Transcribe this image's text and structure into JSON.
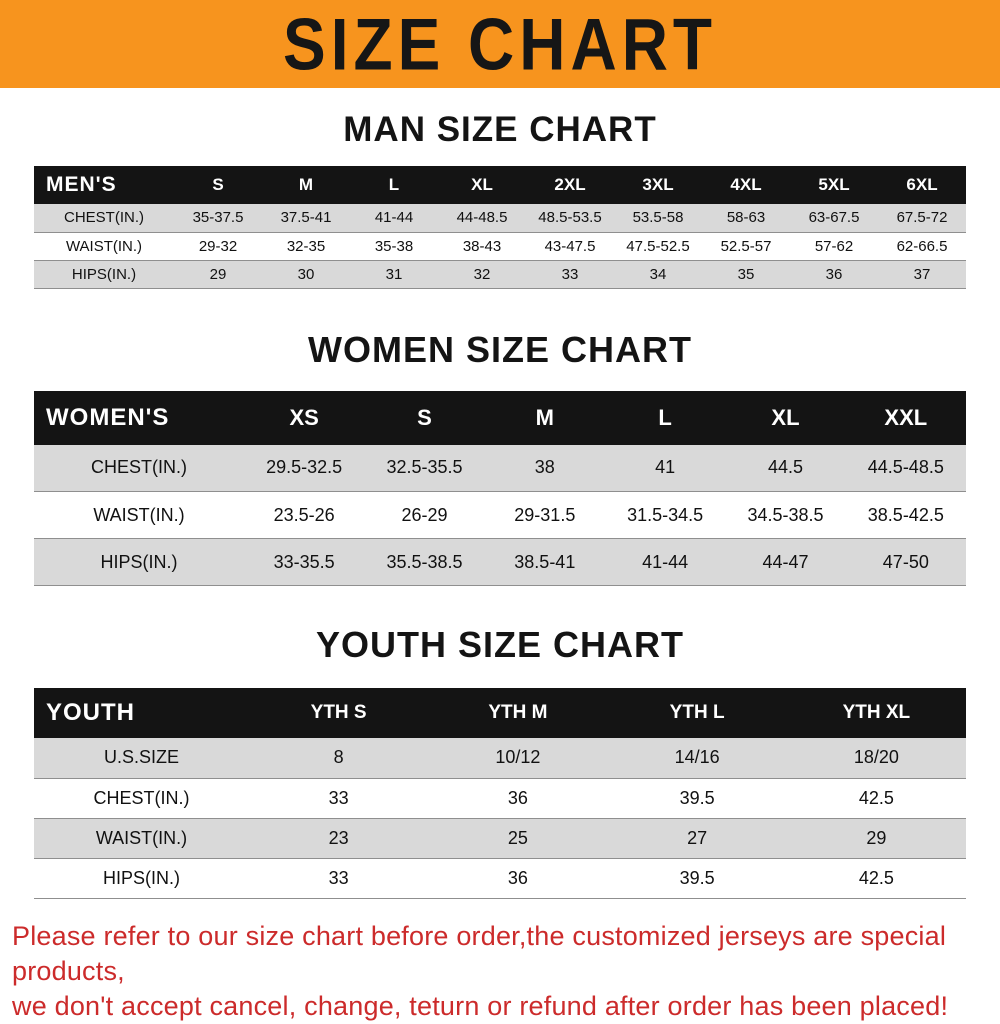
{
  "banner": {
    "title": "SIZE CHART"
  },
  "colors": {
    "banner_bg": "#F7941E",
    "header_bg": "#141414",
    "stripe": "#d9d9d9",
    "footer_text": "#cc2b2b"
  },
  "chart_data": [
    {
      "type": "table",
      "title": "MAN SIZE CHART",
      "columns": [
        "MEN'S",
        "S",
        "M",
        "L",
        "XL",
        "2XL",
        "3XL",
        "4XL",
        "5XL",
        "6XL"
      ],
      "rows": [
        [
          "CHEST(IN.)",
          "35-37.5",
          "37.5-41",
          "41-44",
          "44-48.5",
          "48.5-53.5",
          "53.5-58",
          "58-63",
          "63-67.5",
          "67.5-72"
        ],
        [
          "WAIST(IN.)",
          "29-32",
          "32-35",
          "35-38",
          "38-43",
          "43-47.5",
          "47.5-52.5",
          "52.5-57",
          "57-62",
          "62-66.5"
        ],
        [
          "HIPS(IN.)",
          "29",
          "30",
          "31",
          "32",
          "33",
          "34",
          "35",
          "36",
          "37"
        ]
      ]
    },
    {
      "type": "table",
      "title": "WOMEN SIZE CHART",
      "columns": [
        "WOMEN'S",
        "XS",
        "S",
        "M",
        "L",
        "XL",
        "XXL"
      ],
      "rows": [
        [
          "CHEST(IN.)",
          "29.5-32.5",
          "32.5-35.5",
          "38",
          "41",
          "44.5",
          "44.5-48.5"
        ],
        [
          "WAIST(IN.)",
          "23.5-26",
          "26-29",
          "29-31.5",
          "31.5-34.5",
          "34.5-38.5",
          "38.5-42.5"
        ],
        [
          "HIPS(IN.)",
          "33-35.5",
          "35.5-38.5",
          "38.5-41",
          "41-44",
          "44-47",
          "47-50"
        ]
      ]
    },
    {
      "type": "table",
      "title": "YOUTH SIZE CHART",
      "columns": [
        "YOUTH",
        "YTH S",
        "YTH M",
        "YTH L",
        "YTH XL"
      ],
      "rows": [
        [
          "U.S.SIZE",
          "8",
          "10/12",
          "14/16",
          "18/20"
        ],
        [
          "CHEST(IN.)",
          "33",
          "36",
          "39.5",
          "42.5"
        ],
        [
          "WAIST(IN.)",
          "23",
          "25",
          "27",
          "29"
        ],
        [
          "HIPS(IN.)",
          "33",
          "36",
          "39.5",
          "42.5"
        ]
      ]
    }
  ],
  "footer": {
    "line1": "Please refer to our size chart before order,the customized jerseys are special products,",
    "line2": "we don't accept cancel, change, teturn or refund after order has been placed!"
  }
}
